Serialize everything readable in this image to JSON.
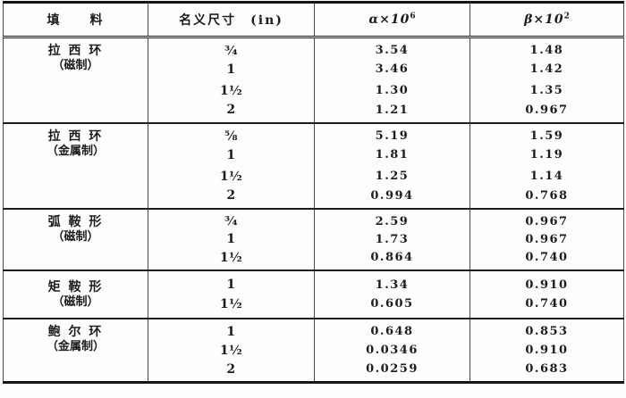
{
  "page": {
    "background": "#fdfdfb",
    "ink": "#1c1c1c"
  },
  "table": {
    "header": {
      "filler": "填　　料",
      "size": "名义尺寸　(in)",
      "alpha_base": "α×10",
      "alpha_exp": "6",
      "beta_base": "β×10",
      "beta_exp": "2"
    },
    "sections": [
      {
        "name": "拉 西 环",
        "material": "（磁制）",
        "rows": [
          {
            "size": "¾",
            "alpha": "3.54",
            "beta": "1.48"
          },
          {
            "size": "1",
            "alpha": "3.46",
            "beta": "1.42"
          },
          {
            "size": "1½",
            "alpha": "1.30",
            "beta": "1.35"
          },
          {
            "size": "2",
            "alpha": "1.21",
            "beta": "0.967"
          }
        ]
      },
      {
        "name": "拉 西 环",
        "material": "（金属制）",
        "rows": [
          {
            "size": "⅝",
            "alpha": "5.19",
            "beta": "1.59"
          },
          {
            "size": "1",
            "alpha": "1.81",
            "beta": "1.19"
          },
          {
            "size": "1½",
            "alpha": "1.25",
            "beta": "1.14"
          },
          {
            "size": "2",
            "alpha": "0.994",
            "beta": "0.768"
          }
        ]
      },
      {
        "name": "弧 鞍 形",
        "material": "（磁制）",
        "rows": [
          {
            "size": "¾",
            "alpha": "2.59",
            "beta": "0.967"
          },
          {
            "size": "1",
            "alpha": "1.73",
            "beta": "0.967"
          },
          {
            "size": "1½",
            "alpha": "0.864",
            "beta": "0.740"
          }
        ]
      },
      {
        "name": "矩 鞍 形",
        "material": "（磁制）",
        "rows": [
          {
            "size": "1",
            "alpha": "1.34",
            "beta": "0.910"
          },
          {
            "size": "1½",
            "alpha": "0.605",
            "beta": "0.740"
          }
        ]
      },
      {
        "name": "鲍 尔 环",
        "material": "（金属制）",
        "rows": [
          {
            "size": "1",
            "alpha": "0.648",
            "beta": "0.853"
          },
          {
            "size": "1½",
            "alpha": "0.0346",
            "beta": "0.910"
          },
          {
            "size": "2",
            "alpha": "0.0259",
            "beta": "0.683"
          }
        ]
      }
    ]
  }
}
